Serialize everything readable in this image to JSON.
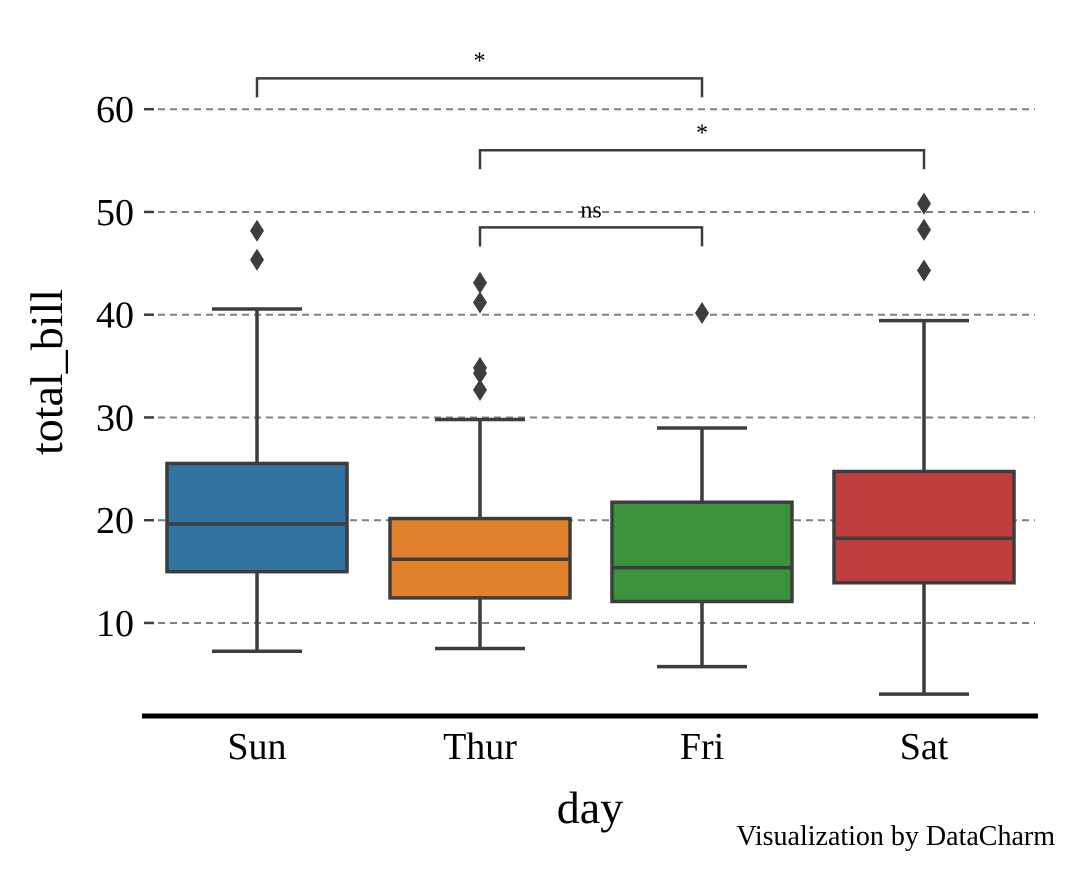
{
  "chart_data": {
    "type": "box",
    "title": "",
    "xlabel": "day",
    "ylabel": "total_bill",
    "ylim": [
      0,
      65
    ],
    "yticks": [
      10,
      20,
      30,
      40,
      50,
      60
    ],
    "grid": "horizontal-dashed",
    "categories": [
      "Sun",
      "Thur",
      "Fri",
      "Sat"
    ],
    "boxes": [
      {
        "category": "Sun",
        "color": "#3274a1",
        "whisker_low": 7.25,
        "q1": 14.99,
        "median": 19.63,
        "q3": 25.52,
        "whisker_high": 40.55,
        "outliers": [
          45.35,
          48.17
        ]
      },
      {
        "category": "Thur",
        "color": "#e1812c",
        "whisker_low": 7.51,
        "q1": 12.44,
        "median": 16.2,
        "q3": 20.16,
        "whisker_high": 29.8,
        "outliers": [
          32.68,
          34.3,
          34.83,
          41.19,
          43.11
        ]
      },
      {
        "category": "Fri",
        "color": "#3a923a",
        "whisker_low": 5.75,
        "q1": 12.09,
        "median": 15.38,
        "q3": 21.75,
        "whisker_high": 28.97,
        "outliers": [
          40.17
        ]
      },
      {
        "category": "Sat",
        "color": "#c03d3e",
        "whisker_low": 3.07,
        "q1": 13.91,
        "median": 18.24,
        "q3": 24.74,
        "whisker_high": 39.42,
        "outliers": [
          44.3,
          48.27,
          50.81
        ]
      }
    ],
    "annotations": [
      {
        "from": "Sun",
        "to": "Fri",
        "y": 63,
        "label": "*"
      },
      {
        "from": "Thur",
        "to": "Sat",
        "y": 56,
        "label": "*"
      },
      {
        "from": "Thur",
        "to": "Fri",
        "y": 48.5,
        "label": "ns"
      }
    ],
    "credit": "Visualization by DataCharm"
  },
  "colors": {
    "edge": "#3d3d3d",
    "grid": "#808080",
    "axis": "#000000"
  }
}
